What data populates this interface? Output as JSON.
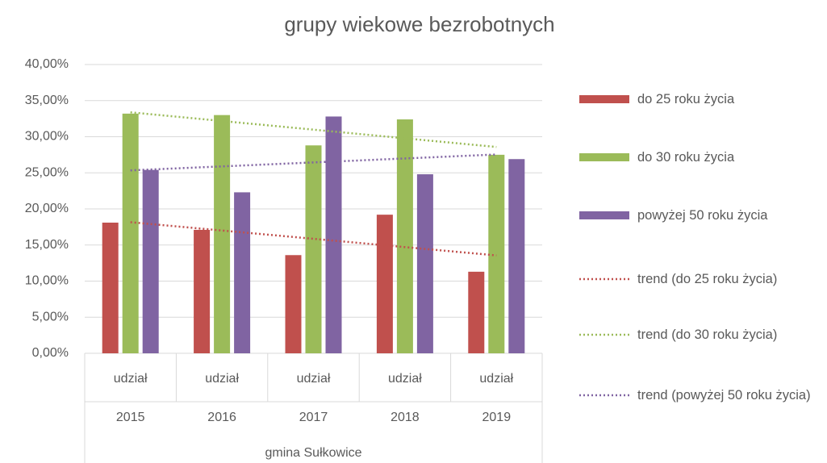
{
  "chart_data": {
    "type": "bar",
    "title": "grupy wiekowe bezrobotnych",
    "categories": [
      "2015",
      "2016",
      "2017",
      "2018",
      "2019"
    ],
    "category_label": [
      "udział",
      "udział",
      "udział",
      "udział",
      "udział"
    ],
    "group": "gmina Sułkowice",
    "series": [
      {
        "name": "do 25 roku życia",
        "color": "#c0504d",
        "values": [
          18.1,
          17.1,
          13.6,
          19.2,
          11.3
        ],
        "trendline": {
          "name": "trend (do 25 roku życia)"
        }
      },
      {
        "name": "do 30 roku życia",
        "color": "#9bbb59",
        "values": [
          33.2,
          33.0,
          28.8,
          32.4,
          27.5
        ],
        "trendline": {
          "name": "trend (do 30 roku życia)"
        }
      },
      {
        "name": "powyżej 50 roku życia",
        "color": "#8064a2",
        "values": [
          25.4,
          22.3,
          32.8,
          24.8,
          26.9
        ],
        "trendline": {
          "name": "trend (powyżej 50 roku życia)"
        }
      }
    ],
    "ylim": [
      0,
      40
    ],
    "yticks": [
      {
        "value": 0,
        "label": "0,00%"
      },
      {
        "value": 5,
        "label": "5,00%"
      },
      {
        "value": 10,
        "label": "10,00%"
      },
      {
        "value": 15,
        "label": "15,00%"
      },
      {
        "value": 20,
        "label": "20,00%"
      },
      {
        "value": 25,
        "label": "25,00%"
      },
      {
        "value": 30,
        "label": "30,00%"
      },
      {
        "value": 35,
        "label": "35,00%"
      },
      {
        "value": 40,
        "label": "40,00%"
      }
    ],
    "grid": true,
    "legend": "right"
  }
}
